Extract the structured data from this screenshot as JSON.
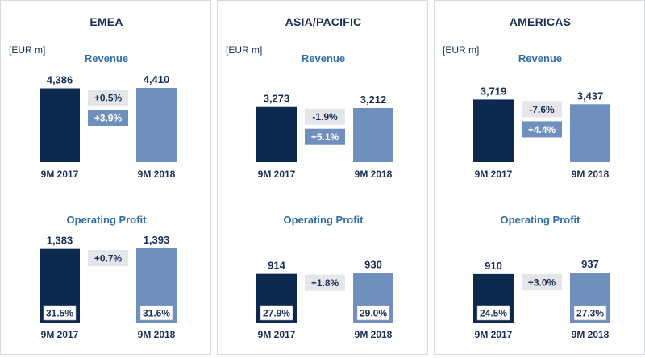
{
  "colors": {
    "dark_bar": "#0d2a4e",
    "light_bar": "#6f8fbd",
    "text_dark": "#1b2f55",
    "title_blue": "#2f6fa6",
    "grey_box": "#e4e6ea",
    "blue_box": "#6f8fbd"
  },
  "chart_data": [
    {
      "type": "bar",
      "region": "EMEA",
      "unit": "[EUR m]",
      "title": "Revenue",
      "categories": [
        "9M 2017",
        "9M 2018"
      ],
      "values": [
        4386,
        4410
      ],
      "value_labels": [
        "4,386",
        "4,410"
      ],
      "changes": [
        {
          "label": "+0.5%",
          "style": "grey"
        },
        {
          "label": "+3.9%",
          "style": "blue"
        }
      ]
    },
    {
      "type": "bar",
      "region": "ASIA/PACIFIC",
      "unit": "[EUR m]",
      "title": "Revenue",
      "categories": [
        "9M 2017",
        "9M 2018"
      ],
      "values": [
        3273,
        3212
      ],
      "value_labels": [
        "3,273",
        "3,212"
      ],
      "changes": [
        {
          "label": "-1.9%",
          "style": "grey"
        },
        {
          "label": "+5.1%",
          "style": "blue"
        }
      ]
    },
    {
      "type": "bar",
      "region": "AMERICAS",
      "unit": "[EUR m]",
      "title": "Revenue",
      "categories": [
        "9M 2017",
        "9M 2018"
      ],
      "values": [
        3719,
        3437
      ],
      "value_labels": [
        "3,719",
        "3,437"
      ],
      "changes": [
        {
          "label": "-7.6%",
          "style": "grey"
        },
        {
          "label": "+4.4%",
          "style": "blue"
        }
      ]
    },
    {
      "type": "bar",
      "region": "EMEA",
      "title": "Operating Profit",
      "categories": [
        "9M 2017",
        "9M 2018"
      ],
      "values": [
        1383,
        1393
      ],
      "value_labels": [
        "1,383",
        "1,393"
      ],
      "margins": [
        "31.5%",
        "31.6%"
      ],
      "changes": [
        {
          "label": "+0.7%",
          "style": "grey"
        }
      ]
    },
    {
      "type": "bar",
      "region": "ASIA/PACIFIC",
      "title": "Operating Profit",
      "categories": [
        "9M 2017",
        "9M 2018"
      ],
      "values": [
        914,
        930
      ],
      "value_labels": [
        "914",
        "930"
      ],
      "margins": [
        "27.9%",
        "29.0%"
      ],
      "changes": [
        {
          "label": "+1.8%",
          "style": "grey"
        }
      ]
    },
    {
      "type": "bar",
      "region": "AMERICAS",
      "title": "Operating Profit",
      "categories": [
        "9M 2017",
        "9M 2018"
      ],
      "values": [
        910,
        937
      ],
      "value_labels": [
        "910",
        "937"
      ],
      "margins": [
        "24.5%",
        "27.3%"
      ],
      "changes": [
        {
          "label": "+3.0%",
          "style": "grey"
        }
      ]
    }
  ],
  "panels": [
    {
      "region": "EMEA",
      "unit": "[EUR m]",
      "revenue_title": "Revenue",
      "profit_title": "Operating Profit"
    },
    {
      "region": "ASIA/PACIFIC",
      "unit": "[EUR m]",
      "revenue_title": "Revenue",
      "profit_title": "Operating Profit"
    },
    {
      "region": "AMERICAS",
      "unit": "[EUR m]",
      "revenue_title": "Revenue",
      "profit_title": "Operating Profit"
    }
  ]
}
